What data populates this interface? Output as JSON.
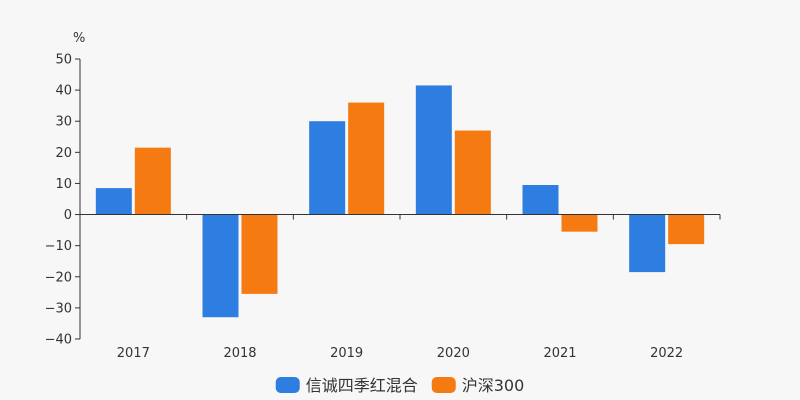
{
  "chart_data": {
    "type": "bar",
    "unit_label": "%",
    "categories": [
      "2017",
      "2018",
      "2019",
      "2020",
      "2021",
      "2022"
    ],
    "series": [
      {
        "name": "信诚四季红混合",
        "color": "#2e7de0",
        "values": [
          8.5,
          -33.0,
          30.0,
          41.5,
          9.5,
          -18.5
        ]
      },
      {
        "name": "沪深300",
        "color": "#f57a11",
        "values": [
          21.5,
          -25.5,
          36.0,
          27.0,
          -5.5,
          -9.5
        ]
      }
    ],
    "ylim": [
      -40,
      50
    ],
    "yticks": [
      50,
      40,
      30,
      20,
      10,
      0,
      -10,
      -20,
      -30,
      -40
    ],
    "ytick_labels": [
      "50",
      "40",
      "30",
      "20",
      "10",
      "0",
      "−10",
      "−20",
      "−30",
      "−40"
    ],
    "grid": false,
    "legend_position": "bottom-center"
  }
}
